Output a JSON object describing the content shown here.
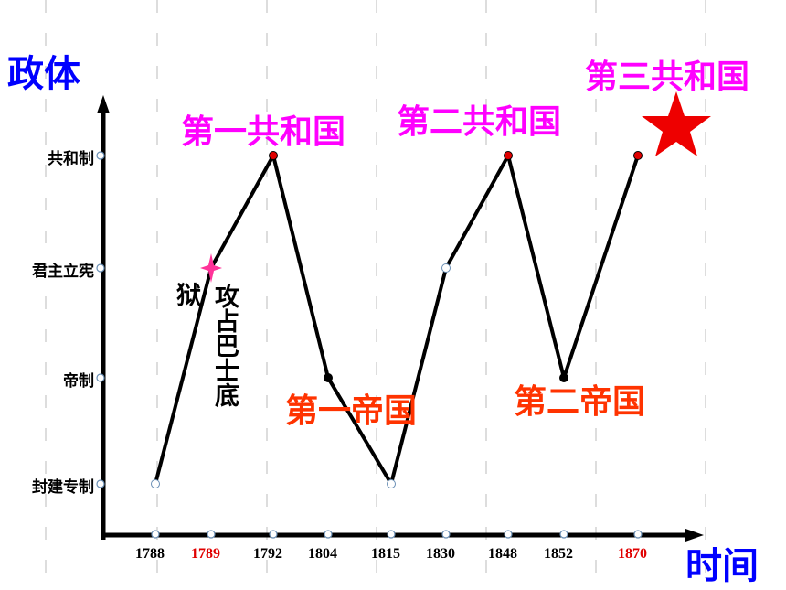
{
  "y_axis_label": "政体",
  "x_axis_label": "时间",
  "levels": [
    "共和制",
    "君主立宪",
    "帝制",
    "封建专制"
  ],
  "years": [
    {
      "label": "1788",
      "color": "#000000"
    },
    {
      "label": "1789",
      "color": "#e00000"
    },
    {
      "label": "1792",
      "color": "#000000"
    },
    {
      "label": "1804",
      "color": "#000000"
    },
    {
      "label": "1815",
      "color": "#000000"
    },
    {
      "label": "1830",
      "color": "#000000"
    },
    {
      "label": "1848",
      "color": "#000000"
    },
    {
      "label": "1852",
      "color": "#000000"
    },
    {
      "label": "1870",
      "color": "#e00000"
    }
  ],
  "points": [
    {
      "year": "1788",
      "level": "封建专制",
      "color": "#ffffff"
    },
    {
      "year": "1789",
      "level": "君主立宪",
      "color": "#ff3399"
    },
    {
      "year": "1792",
      "level": "共和制",
      "color": "#e00000"
    },
    {
      "year": "1804",
      "level": "帝制",
      "color": "#000000"
    },
    {
      "year": "1815",
      "level": "封建专制",
      "color": "#ffffff"
    },
    {
      "year": "1830",
      "level": "君主立宪",
      "color": "#ffffff"
    },
    {
      "year": "1848",
      "level": "共和制",
      "color": "#e00000"
    },
    {
      "year": "1852",
      "level": "帝制",
      "color": "#000000"
    },
    {
      "year": "1870",
      "level": "共和制",
      "color": "#e00000"
    }
  ],
  "annotations": {
    "bastille_main": "攻占巴士底",
    "bastille_tail": "狱",
    "first_republic": "第一共和国",
    "second_republic": "第二共和国",
    "third_republic": "第三共和国",
    "first_empire": "第一帝国",
    "second_empire": "第二帝国"
  }
}
